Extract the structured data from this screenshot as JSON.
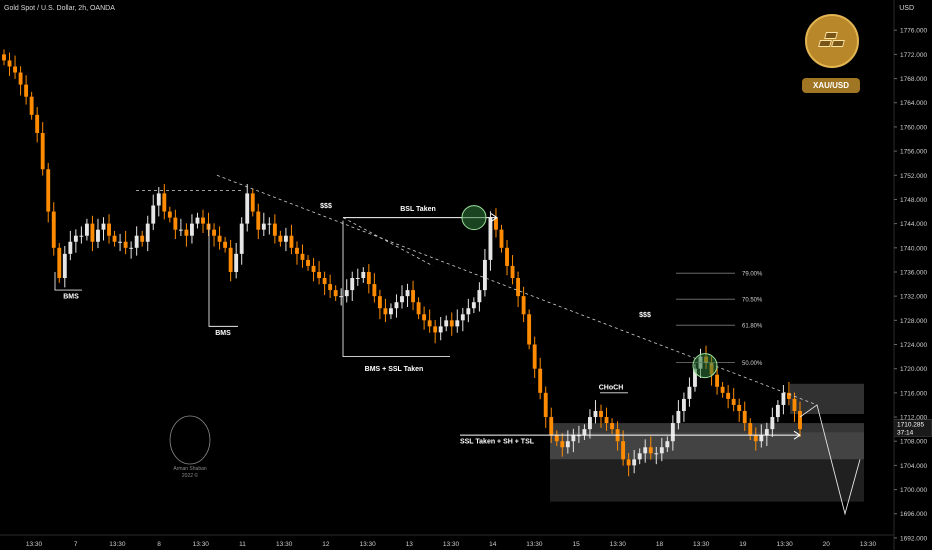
{
  "header": {
    "title": "Gold Spot / U.S. Dollar, 2h, OANDA",
    "currency_label": "USD"
  },
  "badge": {
    "label": "XAU/USD",
    "icon": "gold-bars-icon",
    "color": "#b8872a"
  },
  "price_marker": {
    "price": "1710.285",
    "countdown": "37:14"
  },
  "colors": {
    "up": "#e6e6e6",
    "down": "#ff8c00",
    "background": "#000000"
  },
  "chart_data": {
    "type": "candlestick",
    "symbol": "XAU/USD",
    "ylim": [
      1690,
      1781
    ],
    "y_ticks": [
      "1692.000",
      "1696.000",
      "1700.000",
      "1704.000",
      "1708.000",
      "1712.000",
      "1716.000",
      "1720.000",
      "1724.000",
      "1728.000",
      "1732.000",
      "1736.000",
      "1740.000",
      "1744.000",
      "1748.000",
      "1752.000",
      "1756.000",
      "1760.000",
      "1764.000",
      "1768.000",
      "1772.000",
      "1776.000"
    ],
    "x_ticks": [
      "13:30",
      "7",
      "13:30",
      "8",
      "13:30",
      "11",
      "13:30",
      "12",
      "13:30",
      "13",
      "13:30",
      "14",
      "13:30",
      "15",
      "13:30",
      "18",
      "13:30",
      "19",
      "13:30",
      "20",
      "13:30"
    ],
    "close_path": [
      1771,
      1770,
      1769,
      1767,
      1765,
      1762,
      1759,
      1753,
      1746,
      1740,
      1735,
      1739,
      1741,
      1742,
      1742,
      1744,
      1741,
      1743,
      1744,
      1742,
      1741,
      1741,
      1740,
      1740,
      1742,
      1741,
      1744,
      1747,
      1749,
      1746,
      1745,
      1743,
      1743,
      1742,
      1744,
      1745,
      1744,
      1743,
      1742,
      1741,
      1740,
      1736,
      1739,
      1744,
      1749,
      1746,
      1743,
      1744,
      1744,
      1742,
      1741,
      1742,
      1740,
      1739,
      1738,
      1737,
      1736,
      1735,
      1734,
      1733,
      1732,
      1732,
      1733,
      1735,
      1735,
      1736,
      1734,
      1732,
      1730,
      1729,
      1730,
      1731,
      1732,
      1733,
      1731,
      1729,
      1728,
      1727,
      1726,
      1727,
      1728,
      1727,
      1728,
      1729,
      1730,
      1731,
      1733,
      1738,
      1745,
      1743,
      1740,
      1737,
      1735,
      1732,
      1729,
      1724,
      1720,
      1716,
      1712,
      1709,
      1708,
      1707,
      1708,
      1709,
      1709,
      1710,
      1712,
      1713,
      1712,
      1711,
      1710,
      1708,
      1705,
      1704,
      1705,
      1706,
      1707,
      1706,
      1706,
      1707,
      1708,
      1711,
      1713,
      1715,
      1717,
      1720,
      1722,
      1721,
      1719,
      1717,
      1716,
      1715,
      1714,
      1713,
      1711,
      1709,
      1708,
      1709,
      1710,
      1712,
      1714,
      1716,
      1715,
      1713,
      1710
    ],
    "swing_high_extremes": [
      1729,
      1752,
      1746,
      1724,
      1717
    ],
    "swing_low_extremes": [
      1736,
      1733,
      1729,
      1711,
      1700,
      1701,
      1703
    ],
    "zones": [
      {
        "name": "upper-supply-zone",
        "top": 1717.5,
        "bottom": 1712.5
      },
      {
        "name": "middle-zone",
        "top": 1711,
        "bottom": 1709.5
      },
      {
        "name": "lower-demand-zone",
        "top": 1709.5,
        "bottom": 1705
      },
      {
        "name": "lower-range-zone",
        "top": 1705,
        "bottom": 1698
      }
    ],
    "fib_levels": [
      {
        "label": "79.00%",
        "price": 1735.8
      },
      {
        "label": "70.50%",
        "price": 1731.5
      },
      {
        "label": "61.80%",
        "price": 1727.2
      },
      {
        "label": "50.00%",
        "price": 1721.0
      }
    ],
    "annotations": [
      {
        "text": "BMS",
        "price": 1733
      },
      {
        "text": "BMS",
        "price": 1727
      },
      {
        "text": "BMS + SSL Taken",
        "price": 1722
      },
      {
        "text": "BSL Taken",
        "price": 1746.5
      },
      {
        "text": "SSL Taken + SH + TSL",
        "price": 1709
      },
      {
        "text": "CHoCH",
        "price": 1716
      },
      {
        "text": "$$$",
        "price": 1747
      },
      {
        "text": "$$$",
        "price": 1730
      }
    ],
    "watermark": [
      "Arman Shaban",
      "2022 ©"
    ]
  }
}
